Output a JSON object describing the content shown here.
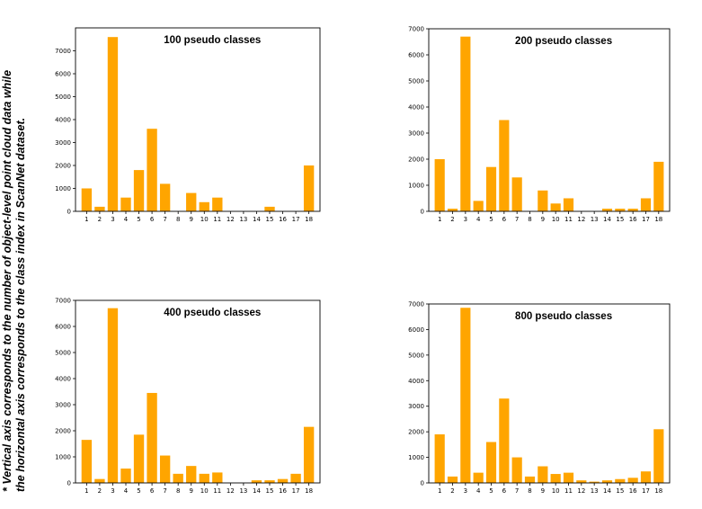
{
  "side_note": {
    "line1": "* Vertical  axis corresponds to the number of object-level point cloud data while",
    "line2": "the horizontal axis corresponds to the class index in ScanNet dataset."
  },
  "colors": {
    "bar": "#FFA500",
    "axis": "#000000"
  },
  "chart_data": [
    {
      "type": "bar",
      "title": "100 pseudo classes",
      "categories": [
        "1",
        "2",
        "3",
        "4",
        "5",
        "6",
        "7",
        "8",
        "9",
        "10",
        "11",
        "12",
        "13",
        "14",
        "15",
        "16",
        "17",
        "18"
      ],
      "values": [
        1000,
        200,
        7600,
        600,
        1800,
        3600,
        1200,
        0,
        800,
        400,
        600,
        0,
        0,
        0,
        200,
        0,
        0,
        2000
      ],
      "yticks": [
        0,
        1000,
        2000,
        3000,
        4000,
        5000,
        6000,
        7000
      ],
      "ylim": [
        0,
        8000
      ],
      "xlabel": "",
      "ylabel": ""
    },
    {
      "type": "bar",
      "title": "200 pseudo classes",
      "categories": [
        "1",
        "2",
        "3",
        "4",
        "5",
        "6",
        "7",
        "8",
        "9",
        "10",
        "11",
        "12",
        "13",
        "14",
        "15",
        "16",
        "17",
        "18"
      ],
      "values": [
        2000,
        100,
        6700,
        400,
        1700,
        3500,
        1300,
        0,
        800,
        300,
        500,
        0,
        0,
        100,
        100,
        100,
        500,
        1900
      ],
      "yticks": [
        0,
        1000,
        2000,
        3000,
        4000,
        5000,
        6000,
        7000
      ],
      "ylim": [
        0,
        7000
      ],
      "xlabel": "",
      "ylabel": ""
    },
    {
      "type": "bar",
      "title": "400 pseudo classes",
      "categories": [
        "1",
        "2",
        "3",
        "4",
        "5",
        "6",
        "7",
        "8",
        "9",
        "10",
        "11",
        "12",
        "13",
        "14",
        "15",
        "16",
        "17",
        "18"
      ],
      "values": [
        1650,
        150,
        6700,
        550,
        1850,
        3450,
        1050,
        350,
        650,
        350,
        400,
        0,
        0,
        100,
        100,
        150,
        350,
        2150
      ],
      "yticks": [
        0,
        1000,
        2000,
        3000,
        4000,
        5000,
        6000,
        7000
      ],
      "ylim": [
        0,
        7000
      ],
      "xlabel": "",
      "ylabel": ""
    },
    {
      "type": "bar",
      "title": "800 pseudo classes",
      "categories": [
        "1",
        "2",
        "3",
        "4",
        "5",
        "6",
        "7",
        "8",
        "9",
        "10",
        "11",
        "12",
        "13",
        "14",
        "15",
        "16",
        "17",
        "18"
      ],
      "values": [
        1900,
        250,
        6850,
        400,
        1600,
        3300,
        1000,
        250,
        650,
        350,
        400,
        100,
        50,
        100,
        150,
        200,
        450,
        2100
      ],
      "yticks": [
        0,
        1000,
        2000,
        3000,
        4000,
        5000,
        6000,
        7000
      ],
      "ylim": [
        0,
        7000
      ],
      "xlabel": "",
      "ylabel": ""
    }
  ]
}
